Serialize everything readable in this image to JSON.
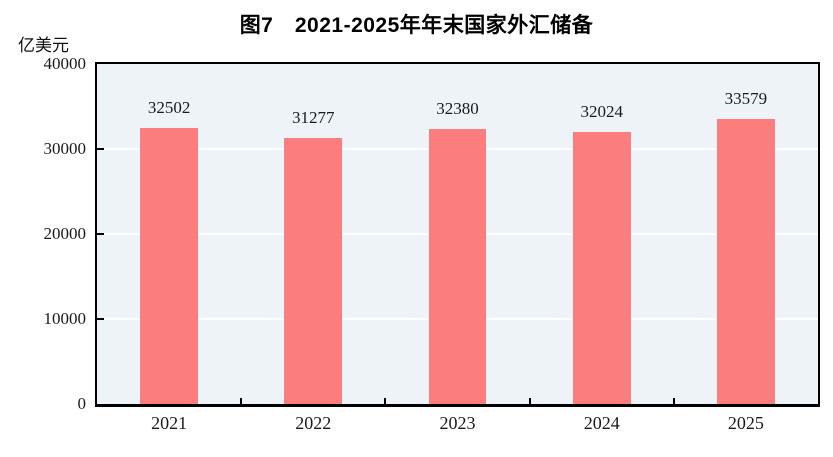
{
  "page": {
    "background": "#ffffff"
  },
  "chart_data": {
    "type": "bar",
    "title": "图7　2021-2025年年末国家外汇储备",
    "unit_label": "亿美元",
    "categories": [
      "2021",
      "2022",
      "2023",
      "2024",
      "2025"
    ],
    "values": [
      32502,
      31277,
      32380,
      32024,
      33579
    ],
    "xlabel": "",
    "ylabel": "亿美元",
    "ylim": [
      0,
      40000
    ],
    "yticks": [
      0,
      10000,
      20000,
      30000,
      40000
    ],
    "bar_color": "#fc7d7d",
    "plot_bg": "#edf3f7",
    "grid_color": "#ffffff",
    "grid": true,
    "legend": false
  }
}
